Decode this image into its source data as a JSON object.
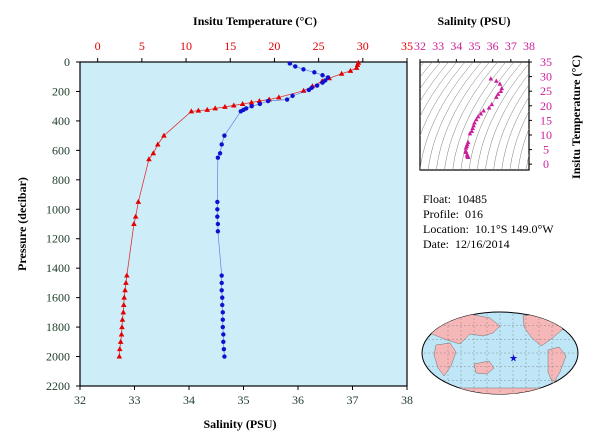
{
  "colors": {
    "temperature": "#e30000",
    "salinity": "#1010d0",
    "inset": "#cc1f9a",
    "plot_bg": "#cdeef9",
    "axis_text": "#1f3d2a"
  },
  "info": {
    "float_label": "Float:",
    "float_value": "10485",
    "profile_label": "Profile:",
    "profile_value": "016",
    "location_label": "Location:",
    "location_value": "10.1°S  149.0°W",
    "date_label": "Date:",
    "date_value": "12/16/2014"
  },
  "map": {
    "marker_icon": "star-icon",
    "marker": {
      "lon": -149.0,
      "lat": -10.1
    }
  },
  "footer_note": "",
  "chart_data": [
    {
      "type": "line",
      "name": "profile",
      "top_axis": {
        "label": "Insitu Temperature (°C)",
        "range": [
          -2,
          35
        ],
        "ticks": [
          "0",
          "5",
          "10",
          "15",
          "20",
          "25",
          "30",
          "35"
        ]
      },
      "bottom_axis": {
        "label": "Salinity (PSU)",
        "range": [
          32,
          38
        ],
        "ticks": [
          "32",
          "33",
          "34",
          "35",
          "36",
          "37",
          "38"
        ]
      },
      "y_axis": {
        "label": "Pressure (decibar)",
        "range": [
          0,
          2200
        ],
        "inverted": true,
        "ticks": [
          "0",
          "200",
          "400",
          "600",
          "800",
          "1000",
          "1200",
          "1400",
          "1600",
          "1800",
          "2000",
          "2200"
        ]
      },
      "series": [
        {
          "name": "Temperature",
          "marker": "triangle",
          "points": [
            [
              29.5,
              5
            ],
            [
              29.4,
              20
            ],
            [
              29.3,
              40
            ],
            [
              28.6,
              60
            ],
            [
              27.6,
              80
            ],
            [
              26.2,
              110
            ],
            [
              25.4,
              130
            ],
            [
              24.3,
              165
            ],
            [
              23.3,
              195
            ],
            [
              20.5,
              240
            ],
            [
              19.4,
              255
            ],
            [
              18.3,
              265
            ],
            [
              17.4,
              275
            ],
            [
              16.4,
              285
            ],
            [
              15.4,
              295
            ],
            [
              14.4,
              305
            ],
            [
              13.3,
              315
            ],
            [
              12.4,
              325
            ],
            [
              11.4,
              330
            ],
            [
              10.6,
              335
            ],
            [
              7.5,
              500
            ],
            [
              6.8,
              560
            ],
            [
              6.3,
              620
            ],
            [
              5.8,
              660
            ],
            [
              4.6,
              950
            ],
            [
              4.3,
              1050
            ],
            [
              4.1,
              1100
            ],
            [
              3.3,
              1450
            ],
            [
              3.2,
              1500
            ],
            [
              3.1,
              1550
            ],
            [
              3.0,
              1600
            ],
            [
              2.95,
              1650
            ],
            [
              2.9,
              1700
            ],
            [
              2.8,
              1750
            ],
            [
              2.75,
              1800
            ],
            [
              2.7,
              1850
            ],
            [
              2.6,
              1900
            ],
            [
              2.5,
              1950
            ],
            [
              2.45,
              2000
            ]
          ]
        },
        {
          "name": "Salinity",
          "marker": "circle",
          "points": [
            [
              35.85,
              10
            ],
            [
              35.95,
              30
            ],
            [
              36.1,
              50
            ],
            [
              36.3,
              70
            ],
            [
              36.45,
              90
            ],
            [
              36.55,
              105
            ],
            [
              36.5,
              125
            ],
            [
              36.45,
              140
            ],
            [
              36.35,
              160
            ],
            [
              36.25,
              175
            ],
            [
              36.2,
              190
            ],
            [
              35.9,
              230
            ],
            [
              35.8,
              255
            ],
            [
              35.45,
              265
            ],
            [
              35.3,
              285
            ],
            [
              35.15,
              300
            ],
            [
              35.05,
              315
            ],
            [
              35.0,
              325
            ],
            [
              34.95,
              335
            ],
            [
              34.65,
              500
            ],
            [
              34.6,
              560
            ],
            [
              34.57,
              620
            ],
            [
              34.53,
              650
            ],
            [
              34.52,
              950
            ],
            [
              34.52,
              1000
            ],
            [
              34.52,
              1050
            ],
            [
              34.53,
              1100
            ],
            [
              34.53,
              1150
            ],
            [
              34.6,
              1450
            ],
            [
              34.6,
              1500
            ],
            [
              34.6,
              1550
            ],
            [
              34.61,
              1600
            ],
            [
              34.61,
              1650
            ],
            [
              34.62,
              1700
            ],
            [
              34.62,
              1750
            ],
            [
              34.62,
              1800
            ],
            [
              34.63,
              1850
            ],
            [
              34.63,
              1900
            ],
            [
              34.64,
              1950
            ],
            [
              34.65,
              2000
            ]
          ]
        }
      ]
    },
    {
      "type": "scatter",
      "name": "ts-inset",
      "x_axis": {
        "label": "Salinity (PSU)",
        "range": [
          32,
          38
        ],
        "ticks": [
          "32",
          "33",
          "34",
          "35",
          "36",
          "37",
          "38"
        ]
      },
      "y_axis": {
        "label": "Insitu Temperature (°C)",
        "range": [
          -2,
          35
        ],
        "ticks": [
          "0",
          "5",
          "10",
          "15",
          "20",
          "25",
          "30",
          "35"
        ]
      },
      "points": [
        [
          35.9,
          29.3
        ],
        [
          36.2,
          28.5
        ],
        [
          36.4,
          27.5
        ],
        [
          36.5,
          26.0
        ],
        [
          36.45,
          25.0
        ],
        [
          36.3,
          24.0
        ],
        [
          36.2,
          23.0
        ],
        [
          35.95,
          20.5
        ],
        [
          35.8,
          19.3
        ],
        [
          35.5,
          18.3
        ],
        [
          35.35,
          17.3
        ],
        [
          35.2,
          16.3
        ],
        [
          35.1,
          15.3
        ],
        [
          35.0,
          14.2
        ],
        [
          34.95,
          13.2
        ],
        [
          34.9,
          12.3
        ],
        [
          34.85,
          11.3
        ],
        [
          34.75,
          10.5
        ],
        [
          34.65,
          7.5
        ],
        [
          34.6,
          6.8
        ],
        [
          34.57,
          6.2
        ],
        [
          34.53,
          5.6
        ],
        [
          34.52,
          4.5
        ],
        [
          34.53,
          4.1
        ],
        [
          34.6,
          3.3
        ],
        [
          34.61,
          3.0
        ],
        [
          34.62,
          2.8
        ],
        [
          34.63,
          2.6
        ],
        [
          34.65,
          2.4
        ]
      ]
    }
  ]
}
